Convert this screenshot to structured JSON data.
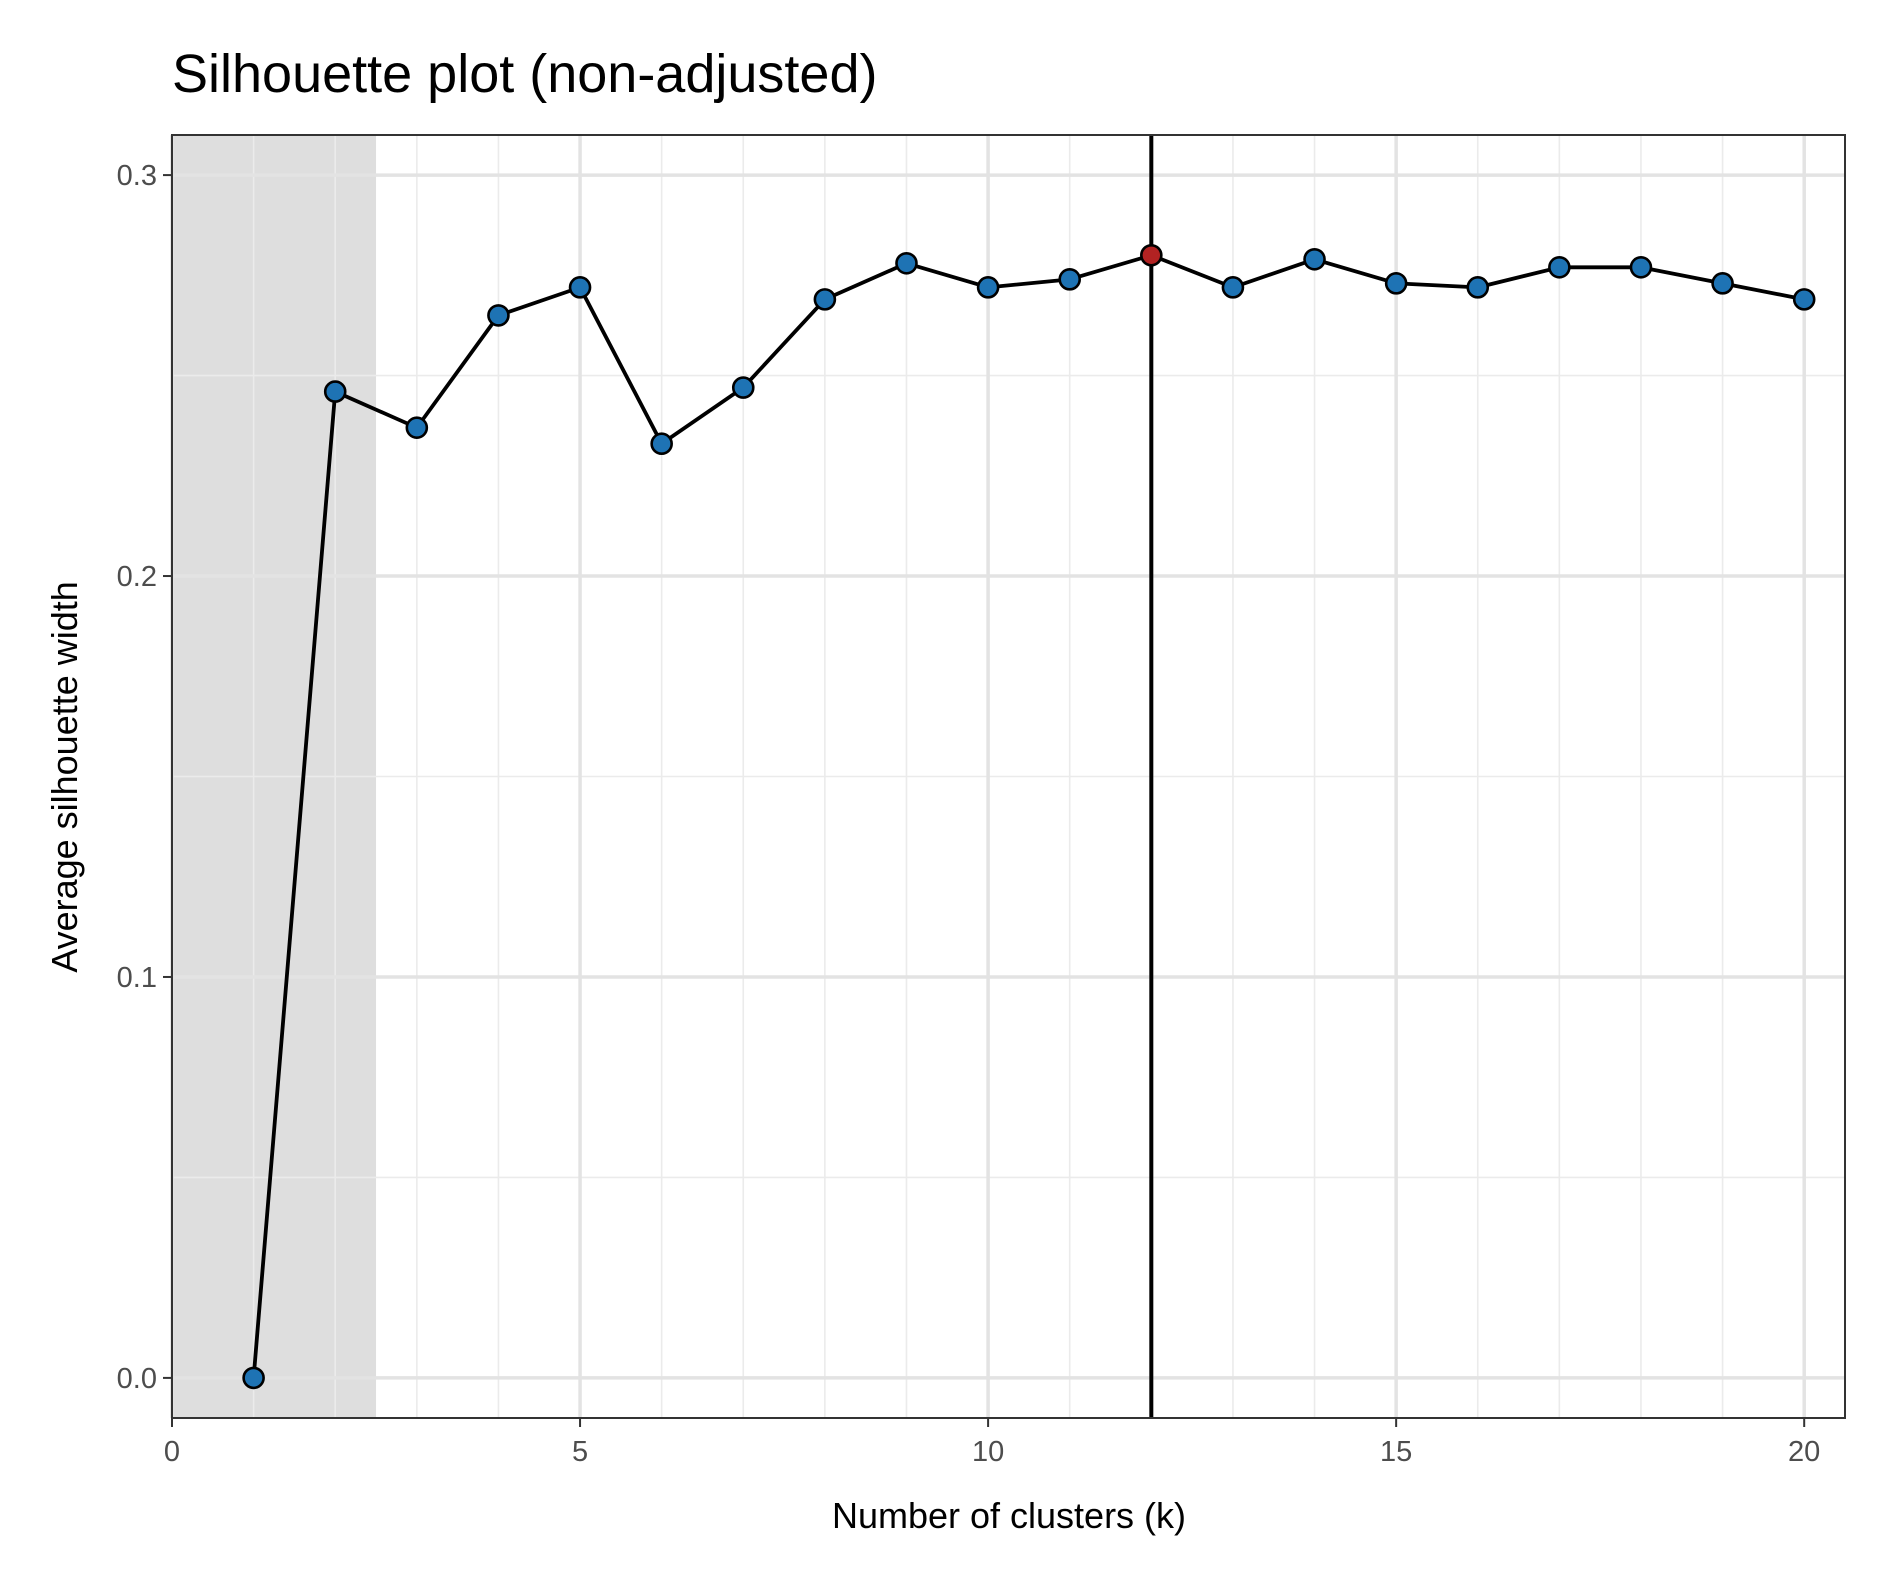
{
  "chart_data": {
    "type": "line",
    "title": "Silhouette plot (non-adjusted)",
    "xlabel": "Number of clusters (k)",
    "ylabel": "Average silhouette width",
    "xlim": [
      0,
      20.5
    ],
    "ylim": [
      -0.01,
      0.31
    ],
    "x_ticks": [
      0,
      5,
      10,
      15,
      20
    ],
    "x_tick_labels": [
      "0",
      "5",
      "10",
      "15",
      "20"
    ],
    "y_ticks": [
      0.0,
      0.1,
      0.2,
      0.3
    ],
    "y_tick_labels": [
      "0.0",
      "0.1",
      "0.2",
      "0.3"
    ],
    "grid": true,
    "shaded_region": {
      "x_start": 0,
      "x_end": 2.5,
      "color": "#dedede"
    },
    "vline": {
      "x": 12,
      "color": "#000000"
    },
    "series": [
      {
        "x": [
          1,
          2,
          3,
          4,
          5,
          6,
          7,
          8,
          9,
          10,
          11,
          12,
          13,
          14,
          15,
          16,
          17,
          18,
          19,
          20
        ],
        "values": [
          0.0,
          0.246,
          0.237,
          0.265,
          0.272,
          0.233,
          0.247,
          0.269,
          0.278,
          0.272,
          0.274,
          0.28,
          0.272,
          0.279,
          0.273,
          0.272,
          0.277,
          0.277,
          0.273,
          0.269
        ],
        "line_color": "#000000",
        "point_color": "#1e73b4",
        "highlight_index": 11,
        "highlight_color": "#b22222"
      }
    ]
  }
}
